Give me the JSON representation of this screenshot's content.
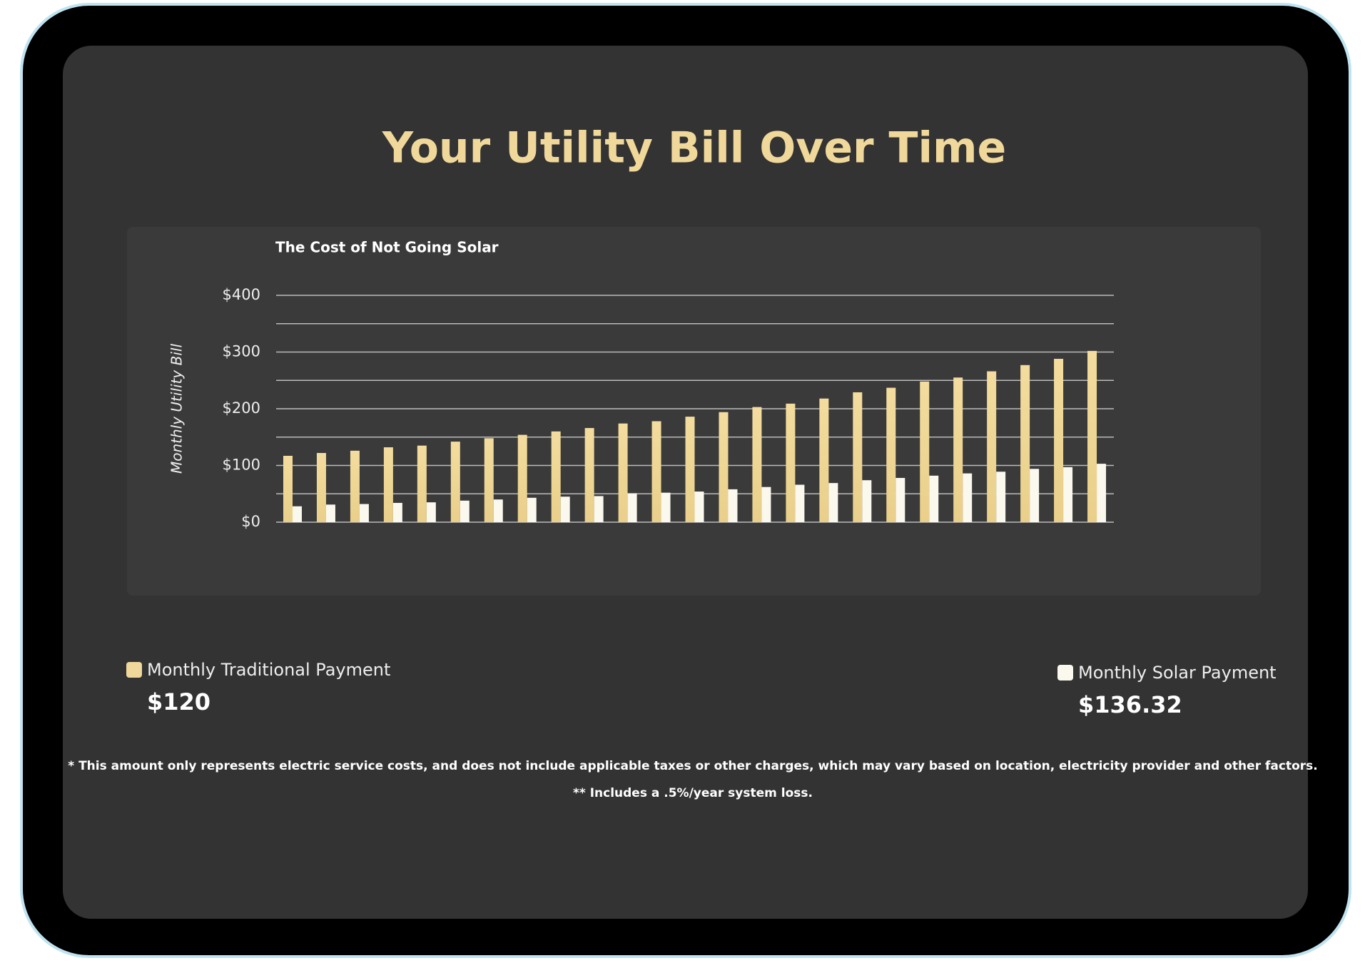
{
  "chart_data": {
    "type": "bar",
    "heading": "Your Utility Bill Over Time",
    "title": "The Cost of Not Going Solar",
    "y_label": "Monthly Utility Bill",
    "categories": [
      null,
      null,
      null,
      null,
      null,
      null,
      null,
      null,
      null,
      null,
      null,
      null,
      null,
      null,
      null,
      null,
      null,
      null,
      null,
      null,
      null,
      null,
      null,
      null,
      null
    ],
    "series": [
      {
        "name": "Monthly Traditional Payment",
        "color": "#f0d89a",
        "legend_value": "$120",
        "values": [
          117,
          122,
          126,
          132,
          135,
          142,
          148,
          154,
          160,
          166,
          174,
          178,
          186,
          194,
          203,
          209,
          218,
          229,
          237,
          248,
          255,
          266,
          277,
          288,
          302
        ]
      },
      {
        "name": "Monthly Solar Payment",
        "color": "#fbf8ee",
        "legend_value": "$136.32",
        "values": [
          28,
          31,
          32,
          34,
          35,
          38,
          40,
          43,
          45,
          46,
          51,
          52,
          54,
          58,
          62,
          66,
          69,
          74,
          78,
          82,
          86,
          89,
          94,
          97,
          103
        ]
      }
    ],
    "ylim": [
      0,
      400
    ],
    "yticks": [
      {
        "value": 0,
        "label": "$0"
      },
      {
        "value": 100,
        "label": "$100"
      },
      {
        "value": 200,
        "label": "$200"
      },
      {
        "value": 300,
        "label": "$300"
      },
      {
        "value": 400,
        "label": "$400"
      }
    ],
    "y_minor_ticks": [
      50,
      150,
      250,
      350
    ],
    "grid": true,
    "notes": [
      "* This amount only represents electric service costs, and does not include applicable taxes or other charges, which may vary based on location, electricity provider and other factors.",
      "** Includes a .5%/year system loss."
    ]
  }
}
